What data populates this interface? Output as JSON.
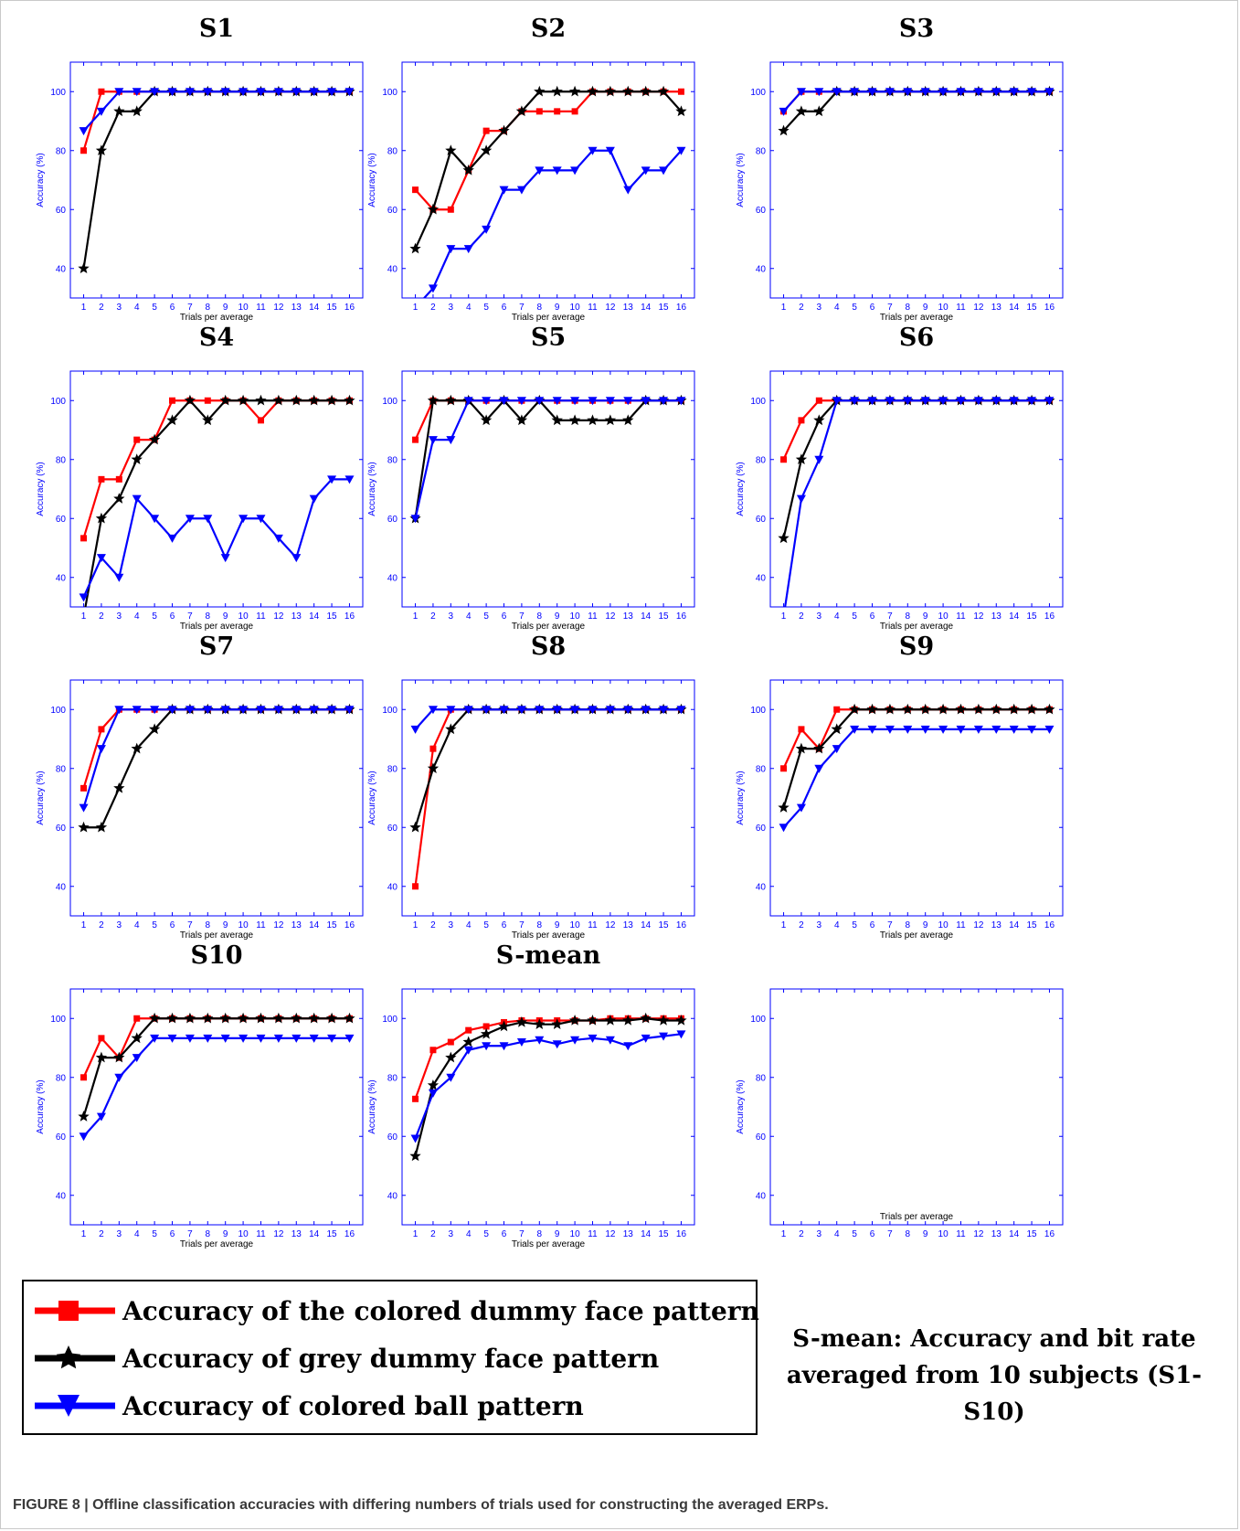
{
  "caption": "FIGURE 8 | Offline classification accuracies with differing numbers of trials used for constructing the averaged ERPs.",
  "note": {
    "line1": "S-mean: Accuracy and bit rate",
    "line2": "averaged from 10 subjects (S1-S10)"
  },
  "legend": [
    {
      "label": "Accuracy of the colored dummy face pattern",
      "color": "#ff0000",
      "marker": "square"
    },
    {
      "label": "Accuracy of grey dummy face pattern",
      "color": "#000000",
      "marker": "star"
    },
    {
      "label": "Accuracy of colored ball pattern",
      "color": "#0000ff",
      "marker": "triangle-down"
    }
  ],
  "chart_data": [
    {
      "type": "line",
      "title": "S1",
      "xlabel": "Trials per average",
      "ylabel": "Accuracy (%)",
      "x": [
        1,
        2,
        3,
        4,
        5,
        6,
        7,
        8,
        9,
        10,
        11,
        12,
        13,
        14,
        15,
        16
      ],
      "ylim": [
        30,
        110
      ],
      "yticks": [
        40,
        60,
        80,
        100
      ],
      "series": [
        {
          "color": "#ff0000",
          "marker": "square",
          "values": [
            80,
            100,
            100,
            100,
            100,
            100,
            100,
            100,
            100,
            100,
            100,
            100,
            100,
            100,
            100,
            100
          ]
        },
        {
          "color": "#000000",
          "marker": "star",
          "values": [
            40,
            80,
            93.3,
            93.3,
            100,
            100,
            100,
            100,
            100,
            100,
            100,
            100,
            100,
            100,
            100,
            100
          ]
        },
        {
          "color": "#0000ff",
          "marker": "triangle-down",
          "values": [
            86.7,
            93.3,
            100,
            100,
            100,
            100,
            100,
            100,
            100,
            100,
            100,
            100,
            100,
            100,
            100,
            100
          ]
        }
      ]
    },
    {
      "type": "line",
      "title": "S2",
      "xlabel": "Trials per average",
      "ylabel": "Accuracy (%)",
      "x": [
        1,
        2,
        3,
        4,
        5,
        6,
        7,
        8,
        9,
        10,
        11,
        12,
        13,
        14,
        15,
        16
      ],
      "ylim": [
        30,
        110
      ],
      "yticks": [
        40,
        60,
        80,
        100
      ],
      "series": [
        {
          "color": "#ff0000",
          "marker": "square",
          "values": [
            66.7,
            60,
            60,
            73.3,
            86.7,
            86.7,
            93.3,
            93.3,
            93.3,
            93.3,
            100,
            100,
            100,
            100,
            100,
            100
          ]
        },
        {
          "color": "#000000",
          "marker": "star",
          "values": [
            46.7,
            60,
            80,
            73.3,
            80,
            86.7,
            93.3,
            100,
            100,
            100,
            100,
            100,
            100,
            100,
            100,
            93.3
          ]
        },
        {
          "color": "#0000ff",
          "marker": "triangle-down",
          "values": [
            26.7,
            33.3,
            46.7,
            46.7,
            53.3,
            66.7,
            66.7,
            73.3,
            73.3,
            73.3,
            80,
            80,
            66.7,
            73.3,
            73.3,
            80
          ]
        }
      ]
    },
    {
      "type": "line",
      "title": "S3",
      "xlabel": "Trials per average",
      "ylabel": "Accuracy (%)",
      "x": [
        1,
        2,
        3,
        4,
        5,
        6,
        7,
        8,
        9,
        10,
        11,
        12,
        13,
        14,
        15,
        16
      ],
      "ylim": [
        30,
        110
      ],
      "yticks": [
        40,
        60,
        80,
        100
      ],
      "series": [
        {
          "color": "#ff0000",
          "marker": "square",
          "values": [
            93.3,
            100,
            100,
            100,
            100,
            100,
            100,
            100,
            100,
            100,
            100,
            100,
            100,
            100,
            100,
            100
          ]
        },
        {
          "color": "#000000",
          "marker": "star",
          "values": [
            86.7,
            93.3,
            93.3,
            100,
            100,
            100,
            100,
            100,
            100,
            100,
            100,
            100,
            100,
            100,
            100,
            100
          ]
        },
        {
          "color": "#0000ff",
          "marker": "triangle-down",
          "values": [
            93.3,
            100,
            100,
            100,
            100,
            100,
            100,
            100,
            100,
            100,
            100,
            100,
            100,
            100,
            100,
            100
          ]
        }
      ]
    },
    {
      "type": "line",
      "title": "S4",
      "xlabel": "Trials per average",
      "ylabel": "Accuracy (%)",
      "x": [
        1,
        2,
        3,
        4,
        5,
        6,
        7,
        8,
        9,
        10,
        11,
        12,
        13,
        14,
        15,
        16
      ],
      "ylim": [
        30,
        110
      ],
      "yticks": [
        40,
        60,
        80,
        100
      ],
      "series": [
        {
          "color": "#ff0000",
          "marker": "square",
          "values": [
            53.3,
            73.3,
            73.3,
            86.7,
            86.7,
            100,
            100,
            100,
            100,
            100,
            93.3,
            100,
            100,
            100,
            100,
            100
          ]
        },
        {
          "color": "#000000",
          "marker": "star",
          "values": [
            26.7,
            60,
            66.7,
            80,
            86.7,
            93.3,
            100,
            93.3,
            100,
            100,
            100,
            100,
            100,
            100,
            100,
            100
          ]
        },
        {
          "color": "#0000ff",
          "marker": "triangle-down",
          "values": [
            33.3,
            46.7,
            40,
            66.7,
            60,
            53.3,
            60,
            60,
            46.7,
            60,
            60,
            53.3,
            46.7,
            66.7,
            73.3,
            73.3
          ]
        }
      ]
    },
    {
      "type": "line",
      "title": "S5",
      "xlabel": "Trials per average",
      "ylabel": "Accuracy (%)",
      "x": [
        1,
        2,
        3,
        4,
        5,
        6,
        7,
        8,
        9,
        10,
        11,
        12,
        13,
        14,
        15,
        16
      ],
      "ylim": [
        30,
        110
      ],
      "yticks": [
        40,
        60,
        80,
        100
      ],
      "series": [
        {
          "color": "#ff0000",
          "marker": "square",
          "values": [
            86.7,
            100,
            100,
            100,
            100,
            100,
            100,
            100,
            100,
            100,
            100,
            100,
            100,
            100,
            100,
            100
          ]
        },
        {
          "color": "#000000",
          "marker": "star",
          "values": [
            60,
            100,
            100,
            100,
            93.3,
            100,
            93.3,
            100,
            93.3,
            93.3,
            93.3,
            93.3,
            93.3,
            100,
            100,
            100
          ]
        },
        {
          "color": "#0000ff",
          "marker": "triangle-down",
          "values": [
            60,
            86.7,
            86.7,
            100,
            100,
            100,
            100,
            100,
            100,
            100,
            100,
            100,
            100,
            100,
            100,
            100
          ]
        }
      ]
    },
    {
      "type": "line",
      "title": "S6",
      "xlabel": "Trials per average",
      "ylabel": "Accuracy (%)",
      "x": [
        1,
        2,
        3,
        4,
        5,
        6,
        7,
        8,
        9,
        10,
        11,
        12,
        13,
        14,
        15,
        16
      ],
      "ylim": [
        30,
        110
      ],
      "yticks": [
        40,
        60,
        80,
        100
      ],
      "series": [
        {
          "color": "#ff0000",
          "marker": "square",
          "values": [
            80,
            93.3,
            100,
            100,
            100,
            100,
            100,
            100,
            100,
            100,
            100,
            100,
            100,
            100,
            100,
            100
          ]
        },
        {
          "color": "#000000",
          "marker": "star",
          "values": [
            53.3,
            80,
            93.3,
            100,
            100,
            100,
            100,
            100,
            100,
            100,
            100,
            100,
            100,
            100,
            100,
            100
          ]
        },
        {
          "color": "#0000ff",
          "marker": "triangle-down",
          "values": [
            26.7,
            66.7,
            80,
            100,
            100,
            100,
            100,
            100,
            100,
            100,
            100,
            100,
            100,
            100,
            100,
            100
          ]
        }
      ]
    },
    {
      "type": "line",
      "title": "S7",
      "xlabel": "Trials per average",
      "ylabel": "Accuracy (%)",
      "x": [
        1,
        2,
        3,
        4,
        5,
        6,
        7,
        8,
        9,
        10,
        11,
        12,
        13,
        14,
        15,
        16
      ],
      "ylim": [
        30,
        110
      ],
      "yticks": [
        40,
        60,
        80,
        100
      ],
      "series": [
        {
          "color": "#ff0000",
          "marker": "square",
          "values": [
            73.3,
            93.3,
            100,
            100,
            100,
            100,
            100,
            100,
            100,
            100,
            100,
            100,
            100,
            100,
            100,
            100
          ]
        },
        {
          "color": "#000000",
          "marker": "star",
          "values": [
            60,
            60,
            73.3,
            86.7,
            93.3,
            100,
            100,
            100,
            100,
            100,
            100,
            100,
            100,
            100,
            100,
            100
          ]
        },
        {
          "color": "#0000ff",
          "marker": "triangle-down",
          "values": [
            66.7,
            86.7,
            100,
            100,
            100,
            100,
            100,
            100,
            100,
            100,
            100,
            100,
            100,
            100,
            100,
            100
          ]
        }
      ]
    },
    {
      "type": "line",
      "title": "S8",
      "xlabel": "Trials per average",
      "ylabel": "Accuracy (%)",
      "x": [
        1,
        2,
        3,
        4,
        5,
        6,
        7,
        8,
        9,
        10,
        11,
        12,
        13,
        14,
        15,
        16
      ],
      "ylim": [
        30,
        110
      ],
      "yticks": [
        40,
        60,
        80,
        100
      ],
      "series": [
        {
          "color": "#ff0000",
          "marker": "square",
          "values": [
            40,
            86.7,
            100,
            100,
            100,
            100,
            100,
            100,
            100,
            100,
            100,
            100,
            100,
            100,
            100,
            100
          ]
        },
        {
          "color": "#000000",
          "marker": "star",
          "values": [
            60,
            80,
            93.3,
            100,
            100,
            100,
            100,
            100,
            100,
            100,
            100,
            100,
            100,
            100,
            100,
            100
          ]
        },
        {
          "color": "#0000ff",
          "marker": "triangle-down",
          "values": [
            93.3,
            100,
            100,
            100,
            100,
            100,
            100,
            100,
            100,
            100,
            100,
            100,
            100,
            100,
            100,
            100
          ]
        }
      ]
    },
    {
      "type": "line",
      "title": "S9",
      "xlabel": "Trials per average",
      "ylabel": "Accuracy (%)",
      "x": [
        1,
        2,
        3,
        4,
        5,
        6,
        7,
        8,
        9,
        10,
        11,
        12,
        13,
        14,
        15,
        16
      ],
      "ylim": [
        30,
        110
      ],
      "yticks": [
        40,
        60,
        80,
        100
      ],
      "series": [
        {
          "color": "#ff0000",
          "marker": "square",
          "values": [
            80,
            93.3,
            86.7,
            100,
            100,
            100,
            100,
            100,
            100,
            100,
            100,
            100,
            100,
            100,
            100,
            100
          ]
        },
        {
          "color": "#000000",
          "marker": "star",
          "values": [
            66.7,
            86.7,
            86.7,
            93.3,
            100,
            100,
            100,
            100,
            100,
            100,
            100,
            100,
            100,
            100,
            100,
            100
          ]
        },
        {
          "color": "#0000ff",
          "marker": "triangle-down",
          "values": [
            60,
            66.7,
            80,
            86.7,
            93.3,
            93.3,
            93.3,
            93.3,
            93.3,
            93.3,
            93.3,
            93.3,
            93.3,
            93.3,
            93.3,
            93.3
          ]
        }
      ]
    },
    {
      "type": "line",
      "title": "S10",
      "xlabel": "Trials per average",
      "ylabel": "Accuracy (%)",
      "x": [
        1,
        2,
        3,
        4,
        5,
        6,
        7,
        8,
        9,
        10,
        11,
        12,
        13,
        14,
        15,
        16
      ],
      "ylim": [
        30,
        110
      ],
      "yticks": [
        40,
        60,
        80,
        100
      ],
      "series": [
        {
          "color": "#ff0000",
          "marker": "square",
          "values": [
            80,
            93.3,
            86.7,
            100,
            100,
            100,
            100,
            100,
            100,
            100,
            100,
            100,
            100,
            100,
            100,
            100
          ]
        },
        {
          "color": "#000000",
          "marker": "star",
          "values": [
            66.7,
            86.7,
            86.7,
            93.3,
            100,
            100,
            100,
            100,
            100,
            100,
            100,
            100,
            100,
            100,
            100,
            100
          ]
        },
        {
          "color": "#0000ff",
          "marker": "triangle-down",
          "values": [
            60,
            66.7,
            80,
            86.7,
            93.3,
            93.3,
            93.3,
            93.3,
            93.3,
            93.3,
            93.3,
            93.3,
            93.3,
            93.3,
            93.3,
            93.3
          ]
        }
      ]
    },
    {
      "type": "line",
      "title": "S-mean",
      "xlabel": "Trials per average",
      "ylabel": "Accuracy (%)",
      "x": [
        1,
        2,
        3,
        4,
        5,
        6,
        7,
        8,
        9,
        10,
        11,
        12,
        13,
        14,
        15,
        16
      ],
      "ylim": [
        30,
        110
      ],
      "yticks": [
        40,
        60,
        80,
        100
      ],
      "series": [
        {
          "color": "#ff0000",
          "marker": "square",
          "values": [
            72.7,
            89.3,
            92,
            96,
            97.3,
            98.7,
            99.3,
            99.3,
            99.3,
            99.3,
            99.3,
            100,
            100,
            100,
            100,
            100
          ]
        },
        {
          "color": "#000000",
          "marker": "star",
          "values": [
            53.3,
            77.3,
            86.7,
            92,
            94.7,
            97.3,
            98.7,
            98,
            98,
            99.3,
            99.3,
            99.3,
            99.3,
            100,
            99.3,
            99.3
          ]
        },
        {
          "color": "#0000ff",
          "marker": "triangle-down",
          "values": [
            59.3,
            74.7,
            80,
            89.3,
            90.7,
            90.7,
            92,
            92.7,
            91.3,
            92.7,
            93.3,
            92.7,
            90.7,
            93.3,
            94,
            94.7
          ]
        }
      ]
    },
    {
      "type": "line",
      "title": "",
      "xlabel": "Trials per average",
      "ylabel": "Accuracy (%)",
      "x": [
        1,
        2,
        3,
        4,
        5,
        6,
        7,
        8,
        9,
        10,
        11,
        12,
        13,
        14,
        15,
        16
      ],
      "ylim": [
        30,
        110
      ],
      "yticks": [
        40,
        60,
        80,
        100
      ],
      "series": []
    }
  ]
}
